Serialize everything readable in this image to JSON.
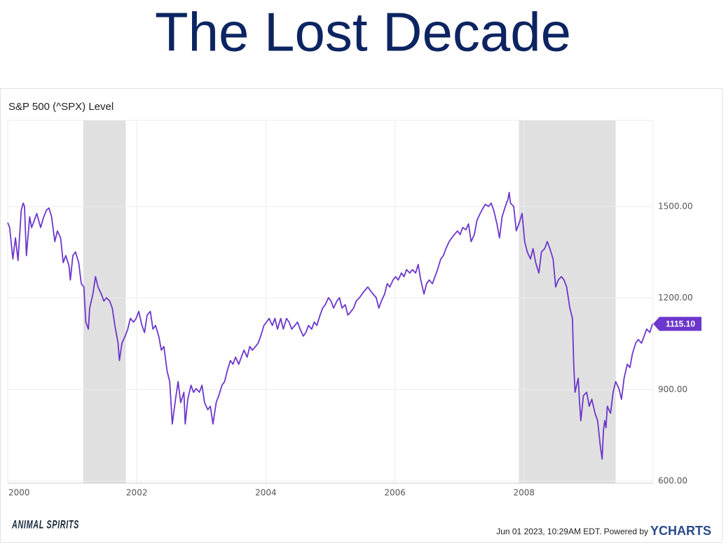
{
  "chart_data": {
    "type": "line",
    "title": "The Lost Decade",
    "subtitle": "S&P 500 (^SPX) Level",
    "xlim": [
      2000,
      2010
    ],
    "xticks": [
      2000,
      2002,
      2004,
      2006,
      2008
    ],
    "ylim": [
      593,
      1782
    ],
    "yticks": [
      {
        "value": 600,
        "label": "600.00"
      },
      {
        "value": 900,
        "label": "900.00"
      },
      {
        "value": 1200,
        "label": "1200.00"
      },
      {
        "value": 1500,
        "label": "1500.00"
      }
    ],
    "grid": true,
    "recessions": [
      [
        2001.17,
        2001.83
      ],
      [
        2007.92,
        2009.42
      ]
    ],
    "recession_color": "#e0e0e0",
    "series": [
      {
        "name": "S&P 500 (^SPX) Level",
        "color": "#6c37cc",
        "x": [
          2000.0,
          2000.03,
          2000.08,
          2000.12,
          2000.16,
          2000.21,
          2000.24,
          2000.26,
          2000.29,
          2000.34,
          2000.37,
          2000.4,
          2000.45,
          2000.48,
          2000.51,
          2000.55,
          2000.6,
          2000.64,
          2000.68,
          2000.73,
          2000.77,
          2000.82,
          2000.86,
          2000.9,
          2000.95,
          2000.97,
          2001.01,
          2001.05,
          2001.1,
          2001.14,
          2001.18,
          2001.21,
          2001.25,
          2001.27,
          2001.32,
          2001.36,
          2001.4,
          2001.45,
          2001.49,
          2001.53,
          2001.58,
          2001.62,
          2001.66,
          2001.71,
          2001.73,
          2001.77,
          2001.82,
          2001.86,
          2001.9,
          2001.95,
          2001.99,
          2002.03,
          2002.08,
          2002.12,
          2002.16,
          2002.21,
          2002.25,
          2002.29,
          2002.34,
          2002.38,
          2002.42,
          2002.47,
          2002.51,
          2002.53,
          2002.55,
          2002.6,
          2002.64,
          2002.68,
          2002.73,
          2002.75,
          2002.79,
          2002.84,
          2002.88,
          2002.92,
          2002.97,
          2003.01,
          2003.05,
          2003.1,
          2003.14,
          2003.18,
          2003.23,
          2003.27,
          2003.32,
          2003.36,
          2003.4,
          2003.45,
          2003.49,
          2003.53,
          2003.58,
          2003.62,
          2003.66,
          2003.71,
          2003.75,
          2003.79,
          2003.84,
          2003.88,
          2003.92,
          2003.97,
          2004.01,
          2004.05,
          2004.1,
          2004.14,
          2004.18,
          2004.23,
          2004.27,
          2004.32,
          2004.36,
          2004.4,
          2004.45,
          2004.49,
          2004.53,
          2004.58,
          2004.62,
          2004.66,
          2004.71,
          2004.75,
          2004.79,
          2004.84,
          2004.88,
          2004.92,
          2004.97,
          2005.01,
          2005.05,
          2005.1,
          2005.14,
          2005.18,
          2005.23,
          2005.27,
          2005.32,
          2005.36,
          2005.4,
          2005.45,
          2005.49,
          2005.53,
          2005.58,
          2005.62,
          2005.66,
          2005.71,
          2005.75,
          2005.79,
          2005.84,
          2005.88,
          2005.92,
          2005.97,
          2006.01,
          2006.05,
          2006.1,
          2006.14,
          2006.18,
          2006.23,
          2006.27,
          2006.32,
          2006.36,
          2006.4,
          2006.45,
          2006.49,
          2006.53,
          2006.58,
          2006.62,
          2006.66,
          2006.71,
          2006.75,
          2006.79,
          2006.84,
          2006.88,
          2006.92,
          2006.97,
          2007.01,
          2007.05,
          2007.1,
          2007.14,
          2007.18,
          2007.23,
          2007.27,
          2007.32,
          2007.36,
          2007.4,
          2007.45,
          2007.49,
          2007.53,
          2007.58,
          2007.62,
          2007.66,
          2007.71,
          2007.75,
          2007.77,
          2007.79,
          2007.84,
          2007.88,
          2007.92,
          2007.97,
          2008.01,
          2008.05,
          2008.1,
          2008.14,
          2008.18,
          2008.23,
          2008.27,
          2008.32,
          2008.36,
          2008.4,
          2008.45,
          2008.49,
          2008.53,
          2008.58,
          2008.62,
          2008.66,
          2008.71,
          2008.75,
          2008.77,
          2008.79,
          2008.84,
          2008.86,
          2008.88,
          2008.92,
          2008.97,
          2009.01,
          2009.05,
          2009.1,
          2009.14,
          2009.18,
          2009.21,
          2009.23,
          2009.25,
          2009.27,
          2009.29,
          2009.34,
          2009.38,
          2009.42,
          2009.47,
          2009.51,
          2009.55,
          2009.6,
          2009.64,
          2009.68,
          2009.73,
          2009.77,
          2009.82,
          2009.86,
          2009.9,
          2009.95,
          2009.99
        ],
        "values": [
          1447,
          1431,
          1328,
          1397,
          1323,
          1488,
          1511,
          1500,
          1339,
          1466,
          1431,
          1447,
          1477,
          1454,
          1431,
          1461,
          1488,
          1495,
          1466,
          1385,
          1420,
          1397,
          1316,
          1339,
          1305,
          1259,
          1339,
          1351,
          1316,
          1247,
          1236,
          1121,
          1098,
          1167,
          1213,
          1270,
          1236,
          1213,
          1190,
          1201,
          1190,
          1167,
          1110,
          1052,
          995,
          1052,
          1075,
          1098,
          1133,
          1121,
          1133,
          1156,
          1110,
          1087,
          1144,
          1156,
          1098,
          1110,
          1075,
          1029,
          1041,
          960,
          926,
          857,
          787,
          868,
          926,
          857,
          891,
          787,
          868,
          914,
          891,
          903,
          891,
          914,
          857,
          834,
          845,
          787,
          857,
          880,
          914,
          926,
          960,
          995,
          983,
          1006,
          983,
          1006,
          1029,
          1006,
          1041,
          1029,
          1041,
          1052,
          1075,
          1110,
          1121,
          1133,
          1110,
          1133,
          1098,
          1133,
          1098,
          1133,
          1121,
          1098,
          1110,
          1121,
          1098,
          1075,
          1087,
          1110,
          1098,
          1121,
          1110,
          1144,
          1167,
          1178,
          1201,
          1190,
          1167,
          1190,
          1201,
          1167,
          1178,
          1144,
          1156,
          1167,
          1190,
          1201,
          1213,
          1224,
          1236,
          1224,
          1213,
          1201,
          1167,
          1190,
          1213,
          1247,
          1236,
          1259,
          1270,
          1259,
          1282,
          1270,
          1293,
          1282,
          1293,
          1282,
          1310,
          1259,
          1213,
          1247,
          1259,
          1247,
          1270,
          1293,
          1328,
          1339,
          1362,
          1385,
          1397,
          1408,
          1420,
          1408,
          1431,
          1424,
          1443,
          1385,
          1408,
          1454,
          1477,
          1493,
          1507,
          1500,
          1511,
          1488,
          1443,
          1397,
          1466,
          1500,
          1523,
          1546,
          1511,
          1500,
          1420,
          1443,
          1477,
          1385,
          1351,
          1328,
          1362,
          1316,
          1282,
          1351,
          1362,
          1385,
          1362,
          1328,
          1236,
          1259,
          1270,
          1259,
          1236,
          1167,
          1133,
          983,
          891,
          937,
          857,
          798,
          880,
          891,
          845,
          868,
          822,
          798,
          718,
          672,
          764,
          798,
          775,
          845,
          822,
          891,
          926,
          903,
          868,
          937,
          983,
          972,
          1018,
          1052,
          1064,
          1052,
          1075,
          1098,
          1087,
          1115.1
        ]
      }
    ],
    "last_value": {
      "value": 1115.1,
      "label": "1115.10"
    },
    "footer": {
      "logo": "ANIMAL SPIRITS",
      "timestamp": "Jun 01 2023, 10:29AM EDT. Powered by",
      "brand": "YCHARTS"
    }
  }
}
